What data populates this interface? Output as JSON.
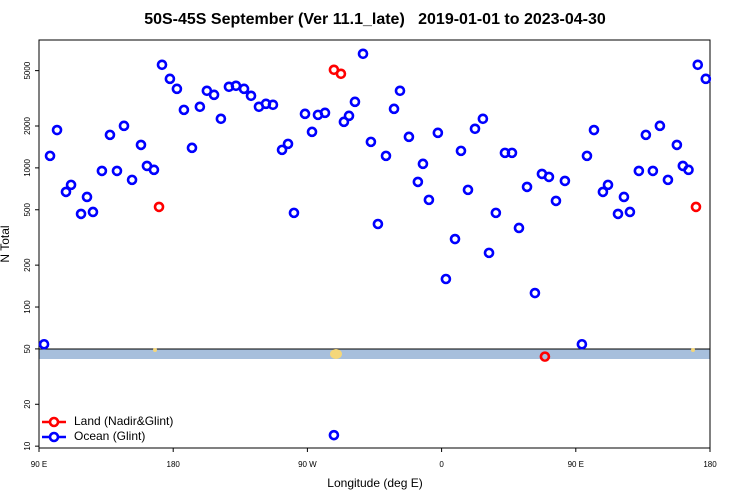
{
  "chart_data": {
    "type": "scatter",
    "title": "50S-45S September (Ver 11.1_late)   2019-01-01 to 2023-04-30",
    "x_label": "Longitude (deg E)",
    "y_label": "N Total",
    "log_y": true,
    "legend": "lower left",
    "xlim": [
      90,
      540
    ],
    "xticks": [
      {
        "value": 90,
        "label": "90 E"
      },
      180,
      {
        "value": 270,
        "label": "90 W"
      },
      {
        "value": 360,
        "label": "0"
      },
      {
        "value": 450,
        "label": "90 E"
      },
      {
        "value": 540,
        "label": "180"
      }
    ],
    "ylim": [
      9.7,
      8300
    ],
    "yticks": [
      10,
      20,
      50,
      100,
      200,
      500,
      1000,
      2000,
      5000
    ],
    "series": [
      {
        "name": "Land (Nadir&Glint)",
        "color": "#ff0000",
        "x": [
          170.5,
          287.8,
          292.5,
          429.3,
          530.6
        ],
        "values": [
          524,
          5070,
          4745,
          44,
          524
        ]
      },
      {
        "name": "Ocean (Glint)",
        "color": "#0000ff",
        "x": [
          93.4,
          97.4,
          102.1,
          108.1,
          111.5,
          118.2,
          122.2,
          126.2,
          132.2,
          137.6,
          142.3,
          147,
          152.4,
          158.4,
          162.4,
          167.1,
          172.5,
          177.8,
          182.5,
          187.2,
          192.6,
          197.9,
          202.6,
          207.4,
          212,
          217.4,
          222.1,
          227.5,
          232.2,
          237.5,
          242.2,
          246.9,
          253,
          257,
          261,
          268.4,
          273.1,
          277.1,
          281.8,
          287.8,
          294.5,
          297.9,
          301.9,
          307.3,
          312.6,
          317.3,
          322.7,
          328.1,
          332.1,
          338.1,
          344.1,
          347.5,
          351.5,
          357.5,
          362.9,
          369,
          373,
          377.7,
          382.4,
          387.7,
          391.8,
          396.4,
          402.5,
          407.2,
          411.9,
          417.3,
          422.6,
          427.3,
          432,
          436.7,
          442.7,
          454.1,
          457.5,
          462.2,
          468.2,
          471.6,
          478.3,
          482.3,
          486.3,
          492.3,
          497,
          501.7,
          506.4,
          511.8,
          517.8,
          521.8,
          525.6,
          531.8,
          537.2
        ],
        "values": [
          54,
          1220,
          1870,
          672,
          755,
          467,
          618,
          482,
          951,
          1727,
          951,
          2005,
          820,
          1463,
          1033,
          968,
          5508,
          4366,
          3700,
          2612,
          1393,
          2748,
          3581,
          3350,
          2253,
          3826,
          3890,
          3700,
          3296,
          2748,
          2886,
          2840,
          1347,
          1488,
          475,
          2445,
          1815,
          2404,
          2487,
          12,
          2143,
          2366,
          2984,
          6607,
          1538,
          395,
          1220,
          2656,
          3581,
          1671,
          793,
          1069,
          589,
          1786,
          159,
          308,
          1325,
          695,
          1909,
          2253,
          245,
          475,
          1282,
          1282,
          370,
          730,
          126,
          905,
          861,
          579,
          806,
          54,
          1220,
          1870,
          672,
          755,
          467,
          618,
          482,
          951,
          1727,
          951,
          2005,
          820,
          1463,
          1033,
          968,
          5508,
          4366
        ]
      }
    ]
  }
}
